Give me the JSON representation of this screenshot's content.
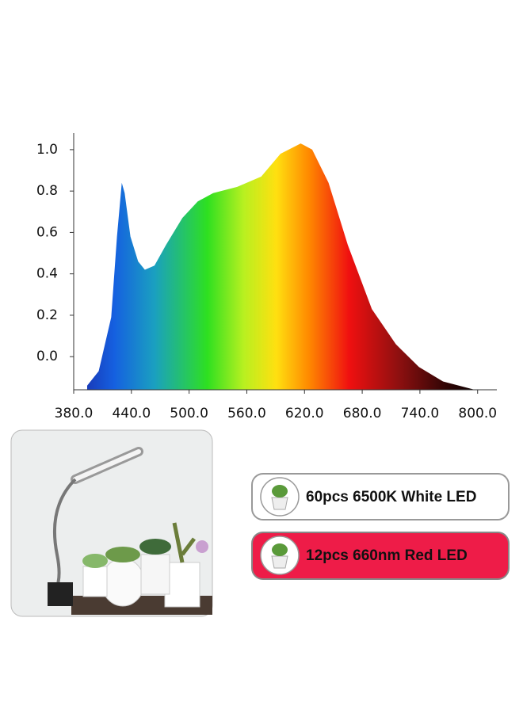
{
  "chart_data": {
    "type": "area",
    "x": [
      394,
      406,
      419,
      425,
      430,
      433,
      439,
      447,
      454,
      464,
      476,
      493,
      509,
      525,
      550,
      575,
      595,
      616,
      628,
      645,
      665,
      690,
      715,
      739,
      764,
      797
    ],
    "values": [
      -0.14,
      -0.07,
      0.19,
      0.58,
      0.84,
      0.79,
      0.58,
      0.46,
      0.42,
      0.44,
      0.54,
      0.67,
      0.75,
      0.79,
      0.82,
      0.87,
      0.98,
      1.03,
      1.0,
      0.84,
      0.54,
      0.23,
      0.06,
      -0.05,
      -0.12,
      -0.16
    ],
    "xlim": [
      380,
      820
    ],
    "ylim": [
      -0.16,
      1.08
    ],
    "xticks": [
      {
        "value": 380,
        "label": "380.0"
      },
      {
        "value": 440,
        "label": "440.0"
      },
      {
        "value": 500,
        "label": "500.0"
      },
      {
        "value": 560,
        "label": "560.0"
      },
      {
        "value": 620,
        "label": "620.0"
      },
      {
        "value": 680,
        "label": "680.0"
      },
      {
        "value": 740,
        "label": "740.0"
      },
      {
        "value": 800,
        "label": "800.0"
      }
    ],
    "yticks": [
      {
        "value": 0,
        "label": "0.0"
      },
      0.2,
      0.4,
      0.6,
      0.8,
      {
        "value": 1,
        "label": "1.0"
      }
    ]
  },
  "labels": [
    "60pcs 6500K White LED",
    "12pcs 660nm Red LED"
  ]
}
